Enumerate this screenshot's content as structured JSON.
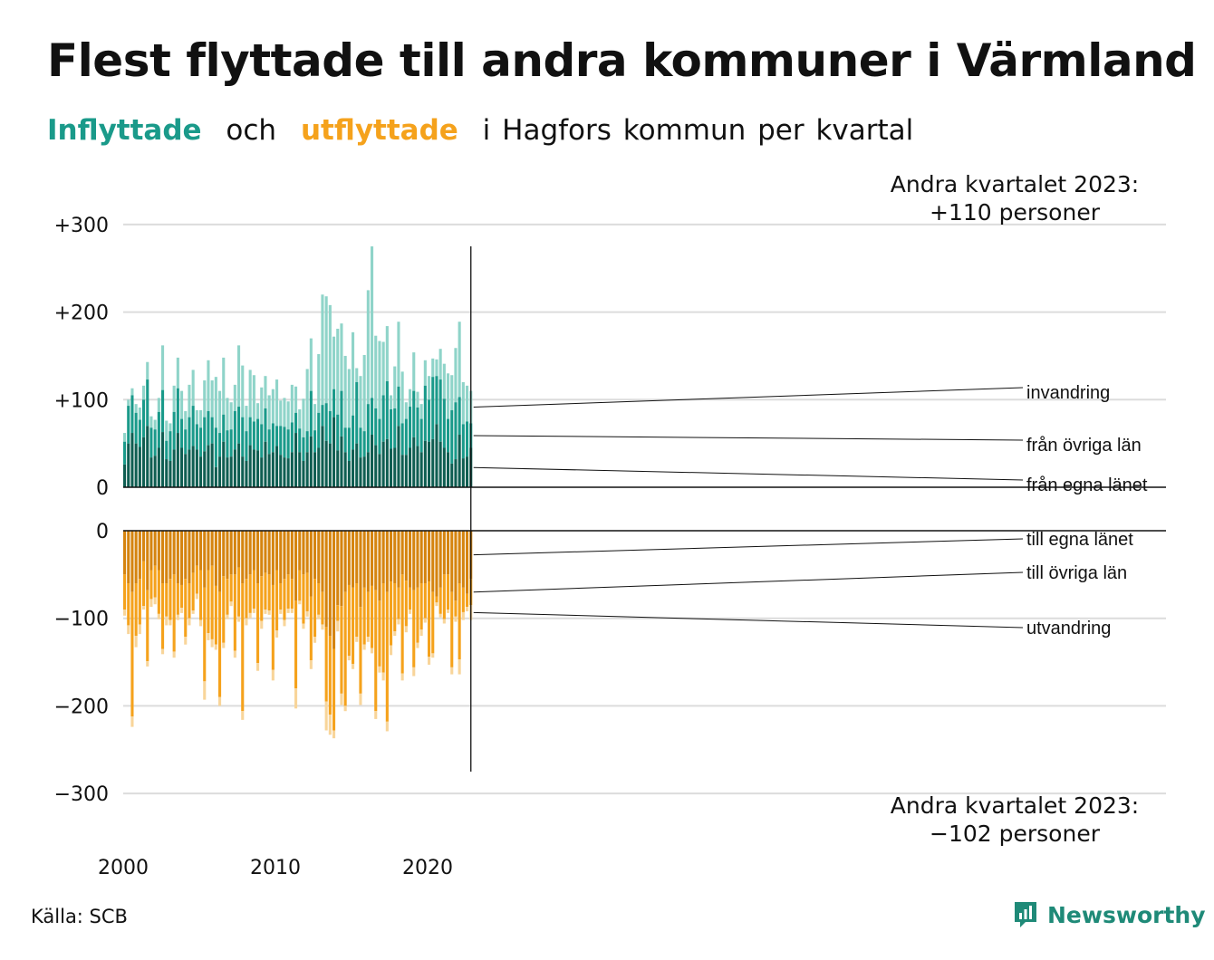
{
  "title": "Flest flyttade till andra kommuner i Värmland",
  "subtitle": {
    "in_word": "Inflyttade",
    "and_word": "och",
    "out_word": "utflyttade",
    "rest": "i Hagfors kommun per kvartal"
  },
  "source": "Källa: SCB",
  "logo_text": "Newsworthy",
  "colors": {
    "in_own": "#0f5e52",
    "in_other": "#1a9a8a",
    "in_abroad": "#8fd4c9",
    "out_own": "#d5840f",
    "out_other": "#f5a21c",
    "out_abroad": "#f8d59a",
    "grid": "#dcdcdc",
    "logo": "#1f8a78"
  },
  "chart_data": {
    "type": "bar",
    "stacked": true,
    "x_start": "2000 Q1",
    "x_ticks": [
      "2000",
      "2010",
      "2020"
    ],
    "y_ticks_top": [
      "+300",
      "+200",
      "+100",
      "0"
    ],
    "y_ticks_bottom": [
      "0",
      "−100",
      "−200",
      "−300"
    ],
    "ylim_top": [
      0,
      300
    ],
    "ylim_bottom": [
      -300,
      0
    ],
    "grid": true,
    "annotation_top": [
      "Andra kvartalet 2023:",
      "+110 personer"
    ],
    "annotation_bottom": [
      "Andra kvartalet 2023:",
      "−102 personer"
    ],
    "series_labels_in": [
      "invandring",
      "från övriga län",
      "från egna länet"
    ],
    "series_labels_out": [
      "till egna länet",
      "till övriga län",
      "utvandring"
    ],
    "inflow_totals": [
      62,
      100,
      113,
      95,
      91,
      116,
      143,
      81,
      77,
      102,
      162,
      76,
      73,
      116,
      148,
      110,
      87,
      117,
      134,
      88,
      88,
      122,
      145,
      122,
      126,
      110,
      148,
      102,
      97,
      117,
      162,
      139,
      93,
      134,
      128,
      96,
      114,
      127,
      105,
      112,
      123,
      99,
      102,
      98,
      117,
      115,
      89,
      101,
      135,
      170,
      95,
      152,
      220,
      218,
      208,
      172,
      181,
      187,
      150,
      135,
      177,
      136,
      127,
      151,
      225,
      275,
      173,
      167,
      166,
      184,
      105,
      138,
      189,
      132,
      97,
      112,
      154,
      109,
      95,
      145,
      127,
      147,
      146,
      158,
      141,
      130,
      128,
      159,
      189,
      120,
      116,
      110
    ],
    "inflow_own": [
      26,
      50,
      62,
      50,
      46,
      57,
      70,
      34,
      36,
      45,
      63,
      32,
      30,
      43,
      62,
      45,
      38,
      43,
      47,
      43,
      35,
      41,
      48,
      50,
      23,
      35,
      52,
      34,
      35,
      43,
      50,
      35,
      30,
      48,
      43,
      42,
      34,
      52,
      38,
      40,
      47,
      37,
      34,
      33,
      40,
      62,
      40,
      30,
      40,
      58,
      40,
      45,
      70,
      53,
      50,
      80,
      42,
      58,
      40,
      30,
      43,
      50,
      34,
      35,
      40,
      60,
      48,
      38,
      52,
      55,
      44,
      45,
      70,
      37,
      37,
      45,
      57,
      47,
      40,
      53,
      52,
      55,
      72,
      52,
      45,
      40,
      27,
      32,
      60,
      33,
      35,
      45
    ],
    "inflow_other": [
      52,
      93,
      105,
      85,
      77,
      100,
      123,
      68,
      66,
      86,
      111,
      53,
      64,
      86,
      113,
      78,
      66,
      80,
      93,
      72,
      68,
      80,
      87,
      80,
      68,
      62,
      83,
      65,
      66,
      87,
      92,
      80,
      64,
      80,
      75,
      78,
      72,
      90,
      66,
      73,
      70,
      70,
      69,
      66,
      74,
      85,
      67,
      57,
      64,
      110,
      65,
      85,
      94,
      96,
      87,
      112,
      83,
      110,
      68,
      68,
      82,
      120,
      68,
      64,
      95,
      102,
      90,
      78,
      105,
      121,
      89,
      90,
      115,
      73,
      78,
      92,
      110,
      91,
      78,
      116,
      100,
      126,
      127,
      123,
      101,
      78,
      88,
      97,
      103,
      72,
      75,
      73
    ],
    "outflow_totals": [
      -97,
      -118,
      -224,
      -133,
      -118,
      -90,
      -155,
      -87,
      -84,
      -101,
      -141,
      -108,
      -108,
      -145,
      -102,
      -94,
      -130,
      -108,
      -95,
      -78,
      -109,
      -193,
      -125,
      -133,
      -136,
      -200,
      -134,
      -101,
      -86,
      -145,
      -104,
      -216,
      -108,
      -100,
      -94,
      -160,
      -112,
      -95,
      -96,
      -171,
      -122,
      -95,
      -109,
      -94,
      -94,
      -203,
      -84,
      -112,
      -98,
      -158,
      -128,
      -101,
      -113,
      -228,
      -233,
      -237,
      -115,
      -199,
      -206,
      -148,
      -158,
      -127,
      -199,
      -136,
      -127,
      -140,
      -215,
      -162,
      -171,
      -229,
      -142,
      -120,
      -107,
      -171,
      -116,
      -95,
      -166,
      -134,
      -120,
      -105,
      -153,
      -145,
      -86,
      -99,
      -106,
      -94,
      -164,
      -104,
      -164,
      -102,
      -92,
      -102
    ],
    "outflow_own": [
      -50,
      -60,
      -70,
      -60,
      -55,
      -35,
      -68,
      -45,
      -40,
      -45,
      -60,
      -60,
      -55,
      -50,
      -60,
      -62,
      -55,
      -60,
      -48,
      -40,
      -45,
      -65,
      -45,
      -40,
      -63,
      -70,
      -52,
      -55,
      -50,
      -50,
      -42,
      -60,
      -55,
      -50,
      -45,
      -60,
      -52,
      -48,
      -50,
      -62,
      -45,
      -60,
      -55,
      -50,
      -55,
      -80,
      -45,
      -50,
      -48,
      -75,
      -55,
      -60,
      -70,
      -110,
      -120,
      -135,
      -85,
      -86,
      -70,
      -62,
      -65,
      -60,
      -87,
      -65,
      -70,
      -63,
      -68,
      -80,
      -60,
      -70,
      -58,
      -60,
      -65,
      -50,
      -57,
      -65,
      -68,
      -65,
      -60,
      -60,
      -58,
      -70,
      -75,
      -65,
      -50,
      -50,
      -70,
      -80,
      -60,
      -65,
      -72,
      -55
    ],
    "outflow_other": [
      -90,
      -108,
      -212,
      -120,
      -107,
      -86,
      -149,
      -78,
      -76,
      -95,
      -135,
      -98,
      -102,
      -138,
      -96,
      -88,
      -121,
      -100,
      -91,
      -72,
      -102,
      -172,
      -117,
      -124,
      -130,
      -190,
      -128,
      -96,
      -81,
      -137,
      -98,
      -206,
      -100,
      -94,
      -89,
      -151,
      -103,
      -90,
      -91,
      -159,
      -114,
      -90,
      -102,
      -89,
      -89,
      -180,
      -80,
      -106,
      -92,
      -148,
      -121,
      -96,
      -107,
      -195,
      -210,
      -228,
      -103,
      -186,
      -200,
      -143,
      -152,
      -121,
      -186,
      -130,
      -121,
      -134,
      -206,
      -155,
      -162,
      -218,
      -131,
      -115,
      -101,
      -163,
      -109,
      -90,
      -156,
      -128,
      -113,
      -100,
      -144,
      -140,
      -82,
      -95,
      -101,
      -90,
      -156,
      -98,
      -147,
      -93,
      -87,
      -85
    ]
  }
}
